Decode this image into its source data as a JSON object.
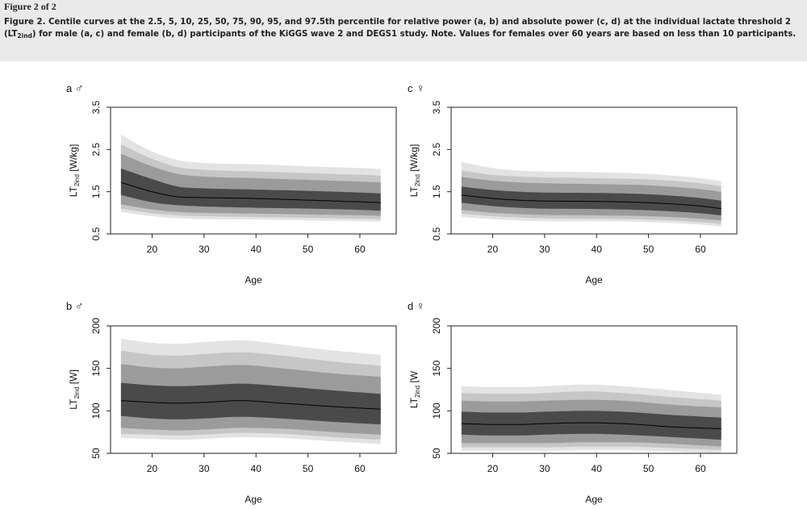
{
  "header": {
    "figure_label": "Figure 2 of 2",
    "caption_pre": "Figure 2. Centile curves at the 2.5, 5, 10, 25, 50, 75, 90, 95, and 97.5th percentile for relative power (a, b) and absolute power (c, d) at the individual lactate threshold 2 (LT",
    "caption_sub": "2ind",
    "caption_post": ") for male (a, c) and female (b, d) participants of the KiGGS wave 2 and DEGS1 study. Note. Values for females over 60 years are based on less than 10 participants."
  },
  "colors": {
    "band_outer": "#e3e3e3",
    "band_2": "#c6c6c6",
    "band_3": "#9b9b9b",
    "band_4": "#4a4a4a",
    "median": "#000000"
  },
  "chart_data": [
    {
      "panel": "a",
      "sex_symbol": "♂",
      "type": "area",
      "xlabel": "Age",
      "ylabel_pre": "LT",
      "ylabel_sub": "2ind",
      "ylabel_post": " [W/kg]",
      "xlim": [
        12,
        67
      ],
      "ylim": [
        0.5,
        3.5
      ],
      "xticks": [
        20,
        30,
        40,
        50,
        60
      ],
      "yticks": [
        0.5,
        1.5,
        2.5,
        3.5
      ],
      "ytick_labels": [
        "0.5",
        "1.5",
        "2.5",
        "3.5"
      ],
      "x": [
        14,
        20,
        25,
        30,
        40,
        50,
        60,
        64
      ],
      "percentiles": [
        {
          "p": 2.5,
          "values": [
            1.02,
            0.92,
            0.87,
            0.85,
            0.84,
            0.82,
            0.8,
            0.79
          ]
        },
        {
          "p": 5,
          "values": [
            1.1,
            0.99,
            0.94,
            0.92,
            0.9,
            0.88,
            0.86,
            0.85
          ]
        },
        {
          "p": 10,
          "values": [
            1.2,
            1.08,
            1.02,
            1.0,
            0.98,
            0.96,
            0.94,
            0.93
          ]
        },
        {
          "p": 25,
          "values": [
            1.42,
            1.25,
            1.18,
            1.15,
            1.12,
            1.1,
            1.07,
            1.05
          ]
        },
        {
          "p": 50,
          "values": [
            1.72,
            1.5,
            1.38,
            1.36,
            1.34,
            1.3,
            1.26,
            1.24
          ]
        },
        {
          "p": 75,
          "values": [
            2.05,
            1.8,
            1.62,
            1.58,
            1.55,
            1.52,
            1.48,
            1.46
          ]
        },
        {
          "p": 90,
          "values": [
            2.4,
            2.1,
            1.92,
            1.86,
            1.82,
            1.78,
            1.74,
            1.72
          ]
        },
        {
          "p": 95,
          "values": [
            2.62,
            2.28,
            2.08,
            2.02,
            1.98,
            1.94,
            1.9,
            1.88
          ]
        },
        {
          "p": 97.5,
          "values": [
            2.85,
            2.45,
            2.25,
            2.18,
            2.15,
            2.1,
            2.06,
            2.04
          ]
        }
      ]
    },
    {
      "panel": "c",
      "sex_symbol": "♀",
      "type": "area",
      "xlabel": "Age",
      "ylabel_pre": "LT",
      "ylabel_sub": "2ind",
      "ylabel_post": " [W/kg]",
      "xlim": [
        12,
        67
      ],
      "ylim": [
        0.5,
        3.5
      ],
      "xticks": [
        20,
        30,
        40,
        50,
        60
      ],
      "yticks": [
        0.5,
        1.5,
        2.5,
        3.5
      ],
      "ytick_labels": [
        "0.5",
        "1.5",
        "2.5",
        "3.5"
      ],
      "x": [
        14,
        20,
        25,
        30,
        40,
        50,
        60,
        64
      ],
      "percentiles": [
        {
          "p": 2.5,
          "values": [
            0.9,
            0.85,
            0.82,
            0.8,
            0.8,
            0.78,
            0.72,
            0.68
          ]
        },
        {
          "p": 5,
          "values": [
            0.98,
            0.92,
            0.89,
            0.87,
            0.86,
            0.84,
            0.78,
            0.74
          ]
        },
        {
          "p": 10,
          "values": [
            1.07,
            1.0,
            0.97,
            0.95,
            0.94,
            0.92,
            0.86,
            0.82
          ]
        },
        {
          "p": 25,
          "values": [
            1.24,
            1.16,
            1.12,
            1.1,
            1.09,
            1.06,
            0.99,
            0.94
          ]
        },
        {
          "p": 50,
          "values": [
            1.42,
            1.34,
            1.3,
            1.28,
            1.27,
            1.24,
            1.16,
            1.1
          ]
        },
        {
          "p": 75,
          "values": [
            1.62,
            1.54,
            1.5,
            1.48,
            1.47,
            1.44,
            1.35,
            1.29
          ]
        },
        {
          "p": 90,
          "values": [
            1.85,
            1.76,
            1.72,
            1.7,
            1.68,
            1.65,
            1.56,
            1.5
          ]
        },
        {
          "p": 95,
          "values": [
            2.0,
            1.9,
            1.86,
            1.84,
            1.82,
            1.79,
            1.7,
            1.63
          ]
        },
        {
          "p": 97.5,
          "values": [
            2.2,
            2.06,
            2.0,
            1.98,
            1.96,
            1.92,
            1.82,
            1.75
          ]
        }
      ]
    },
    {
      "panel": "b",
      "sex_symbol": "♂",
      "type": "area",
      "xlabel": "Age",
      "ylabel_pre": "LT",
      "ylabel_sub": "2ind",
      "ylabel_post": " [W]",
      "xlim": [
        12,
        67
      ],
      "ylim": [
        50,
        200
      ],
      "xticks": [
        20,
        30,
        40,
        50,
        60
      ],
      "yticks": [
        50,
        100,
        150,
        200
      ],
      "ytick_labels": [
        "50",
        "100",
        "150",
        "200"
      ],
      "x": [
        14,
        20,
        25,
        30,
        37,
        45,
        55,
        64
      ],
      "percentiles": [
        {
          "p": 2.5,
          "values": [
            68,
            67,
            66,
            67,
            69,
            68,
            64,
            61
          ]
        },
        {
          "p": 5,
          "values": [
            73,
            72,
            71,
            72,
            74,
            73,
            69,
            66
          ]
        },
        {
          "p": 10,
          "values": [
            80,
            78,
            77,
            78,
            80,
            79,
            75,
            72
          ]
        },
        {
          "p": 25,
          "values": [
            94,
            91,
            90,
            91,
            93,
            91,
            87,
            84
          ]
        },
        {
          "p": 50,
          "values": [
            112,
            110,
            109,
            110,
            112,
            109,
            105,
            102
          ]
        },
        {
          "p": 75,
          "values": [
            133,
            130,
            129,
            130,
            132,
            129,
            124,
            120
          ]
        },
        {
          "p": 90,
          "values": [
            155,
            151,
            150,
            152,
            154,
            150,
            144,
            140
          ]
        },
        {
          "p": 95,
          "values": [
            171,
            166,
            165,
            167,
            169,
            165,
            158,
            153
          ]
        },
        {
          "p": 97.5,
          "values": [
            185,
            180,
            179,
            181,
            183,
            178,
            171,
            166
          ]
        }
      ]
    },
    {
      "panel": "d",
      "sex_symbol": "♀",
      "type": "area",
      "xlabel": "Age",
      "ylabel_pre": "LT",
      "ylabel_sub": "2ind",
      "ylabel_post": " [W",
      "xlim": [
        12,
        67
      ],
      "ylim": [
        50,
        200
      ],
      "xticks": [
        20,
        30,
        40,
        50,
        60
      ],
      "yticks": [
        50,
        100,
        150,
        200
      ],
      "ytick_labels": [
        "50",
        "100",
        "150",
        "200"
      ],
      "x": [
        14,
        20,
        25,
        30,
        38,
        45,
        55,
        64
      ],
      "percentiles": [
        {
          "p": 2.5,
          "values": [
            53,
            53,
            53,
            53,
            54,
            54,
            52,
            50
          ]
        },
        {
          "p": 5,
          "values": [
            57,
            57,
            57,
            57,
            58,
            58,
            56,
            54
          ]
        },
        {
          "p": 10,
          "values": [
            62,
            62,
            62,
            62,
            63,
            63,
            61,
            58
          ]
        },
        {
          "p": 25,
          "values": [
            72,
            71,
            71,
            72,
            73,
            72,
            69,
            66
          ]
        },
        {
          "p": 50,
          "values": [
            85,
            84,
            84,
            85,
            86,
            85,
            81,
            79
          ]
        },
        {
          "p": 75,
          "values": [
            99,
            98,
            98,
            99,
            100,
            99,
            95,
            92
          ]
        },
        {
          "p": 90,
          "values": [
            112,
            111,
            111,
            112,
            113,
            112,
            107,
            104
          ]
        },
        {
          "p": 95,
          "values": [
            121,
            120,
            120,
            121,
            123,
            121,
            116,
            112
          ]
        },
        {
          "p": 97.5,
          "values": [
            129,
            128,
            128,
            129,
            131,
            129,
            124,
            119
          ]
        }
      ]
    }
  ]
}
